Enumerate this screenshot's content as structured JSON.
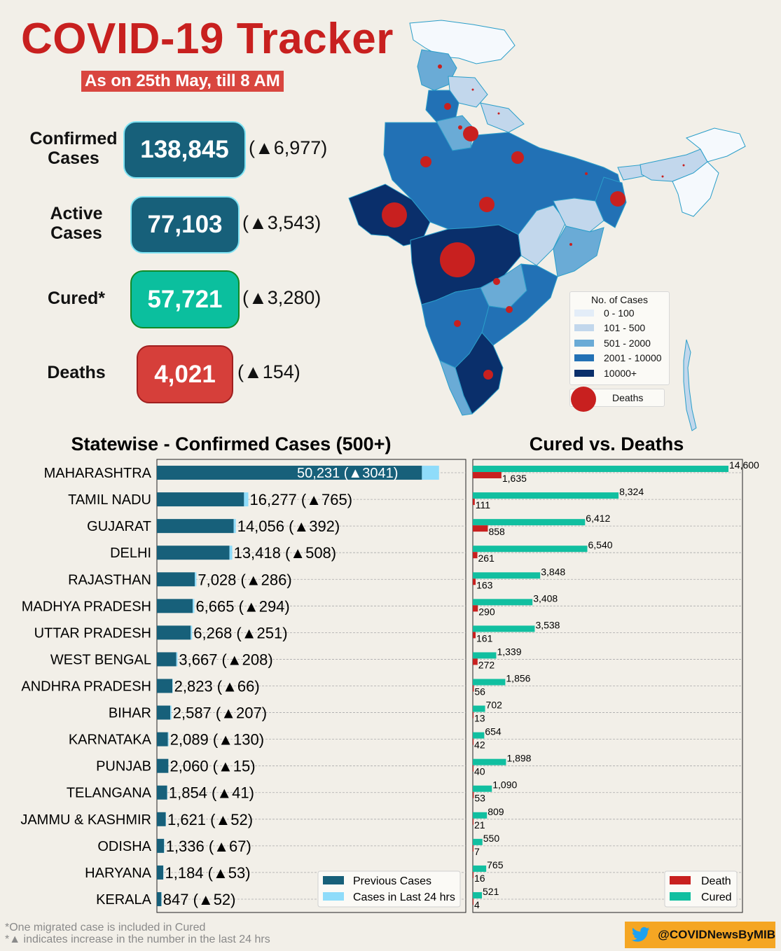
{
  "header": {
    "title": "COVID-19 Tracker",
    "subtitle": "As on 25th May, till 8 AM"
  },
  "stats": [
    {
      "label_line1": "Confirmed",
      "label_line2": "Cases",
      "value": "138,845",
      "delta": "(▲6,977)",
      "color": "#17607a",
      "border": "#7fe3f3"
    },
    {
      "label_line1": "Active",
      "label_line2": "Cases",
      "value": "77,103",
      "delta": "(▲3,543)",
      "color": "#17607a",
      "border": "#7fe3f3"
    },
    {
      "label_line1": "Cured*",
      "label_line2": "",
      "value": "57,721",
      "delta": "(▲3,280)",
      "color": "#0bbf9e",
      "border": "#128a28"
    },
    {
      "label_line1": "Deaths",
      "label_line2": "",
      "value": "4,021",
      "delta": "(▲154)",
      "color": "#d63f3a",
      "border": "#a01f1f"
    }
  ],
  "map_legend": {
    "title": "No. of Cases",
    "items": [
      {
        "label": "0 - 100",
        "color": "#e3edf8"
      },
      {
        "label": "101 - 500",
        "color": "#c2d7ec"
      },
      {
        "label": "501 - 2000",
        "color": "#6aabd6"
      },
      {
        "label": "2001 - 10000",
        "color": "#2271b5"
      },
      {
        "label": "10000+",
        "color": "#0a2f6b"
      }
    ],
    "deaths_label": "Deaths",
    "deaths_color": "#c8201f"
  },
  "chart_data": [
    {
      "type": "bar",
      "orientation": "horizontal",
      "stacked": true,
      "title": "Statewise - Confirmed Cases (500+)",
      "categories": [
        "MAHARASHTRA",
        "TAMIL NADU",
        "GUJARAT",
        "DELHI",
        "RAJASTHAN",
        "MADHYA PRADESH",
        "UTTAR PRADESH",
        "WEST BENGAL",
        "ANDHRA PRADESH",
        "BIHAR",
        "KARNATAKA",
        "PUNJAB",
        "TELANGANA",
        "JAMMU & KASHMIR",
        "ODISHA",
        "HARYANA",
        "KERALA"
      ],
      "series": [
        {
          "name": "Previous Cases",
          "color": "#17607a",
          "values": [
            47190,
            15512,
            13664,
            12910,
            6742,
            6371,
            6017,
            3459,
            2757,
            2380,
            1959,
            2045,
            1813,
            1569,
            1269,
            1131,
            795
          ]
        },
        {
          "name": "Cases in Last 24 hrs",
          "color": "#8fdcfa",
          "values": [
            3041,
            765,
            392,
            508,
            286,
            294,
            251,
            208,
            66,
            207,
            130,
            15,
            41,
            52,
            67,
            53,
            52
          ]
        }
      ],
      "data_labels": [
        "50,231 (▲3041)",
        "16,277 (▲765)",
        "14,056 (▲392)",
        "13,418 (▲508)",
        "7,028 (▲286)",
        "6,665 (▲294)",
        "6,268 (▲251)",
        "3,667 (▲208)",
        "2,823 (▲66)",
        "2,587 (▲207)",
        "2,089 (▲130)",
        "2,060 (▲15)",
        "1,854 (▲41)",
        "1,621 (▲52)",
        "1,336 (▲67)",
        "1,184 (▲53)",
        "847 (▲52)"
      ],
      "xlim": [
        0,
        55000
      ],
      "grid": "horizontal dashed",
      "legend": "bottom-right"
    },
    {
      "type": "bar",
      "orientation": "horizontal",
      "title": "Cured vs. Deaths",
      "categories": [
        "MAHARASHTRA",
        "TAMIL NADU",
        "GUJARAT",
        "DELHI",
        "RAJASTHAN",
        "MADHYA PRADESH",
        "UTTAR PRADESH",
        "WEST BENGAL",
        "ANDHRA PRADESH",
        "BIHAR",
        "KARNATAKA",
        "PUNJAB",
        "TELANGANA",
        "JAMMU & KASHMIR",
        "ODISHA",
        "HARYANA",
        "KERALA"
      ],
      "series": [
        {
          "name": "Death",
          "color": "#c8201f",
          "values": [
            1635,
            111,
            858,
            261,
            163,
            290,
            161,
            272,
            56,
            13,
            42,
            40,
            53,
            21,
            7,
            16,
            4
          ]
        },
        {
          "name": "Cured",
          "color": "#11bfa0",
          "values": [
            14600,
            8324,
            6412,
            6540,
            3848,
            3408,
            3538,
            1339,
            1856,
            702,
            654,
            1898,
            1090,
            809,
            550,
            765,
            521
          ]
        }
      ],
      "cured_labels": [
        "14,600",
        "8,324",
        "6,412",
        "6,540",
        "3,848",
        "3,408",
        "3,538",
        "1,339",
        "1,856",
        "702",
        "654",
        "1,898",
        "1,090",
        "809",
        "550",
        "765",
        "521"
      ],
      "death_labels": [
        "1,635",
        "111",
        "858",
        "261",
        "163",
        "290",
        "161",
        "272",
        "56",
        "13",
        "42",
        "40",
        "53",
        "21",
        "7",
        "16",
        "4"
      ],
      "xlim": [
        0,
        15500
      ],
      "grid": "horizontal dashed",
      "legend": "bottom-right"
    }
  ],
  "footnotes": {
    "line1": "*One migrated case is included in Cured",
    "line2": "*▲ indicates increase in the number in the last 24 hrs"
  },
  "badge": {
    "handle": "@COVIDNewsByMIB",
    "icon": "twitter-bird-icon"
  }
}
